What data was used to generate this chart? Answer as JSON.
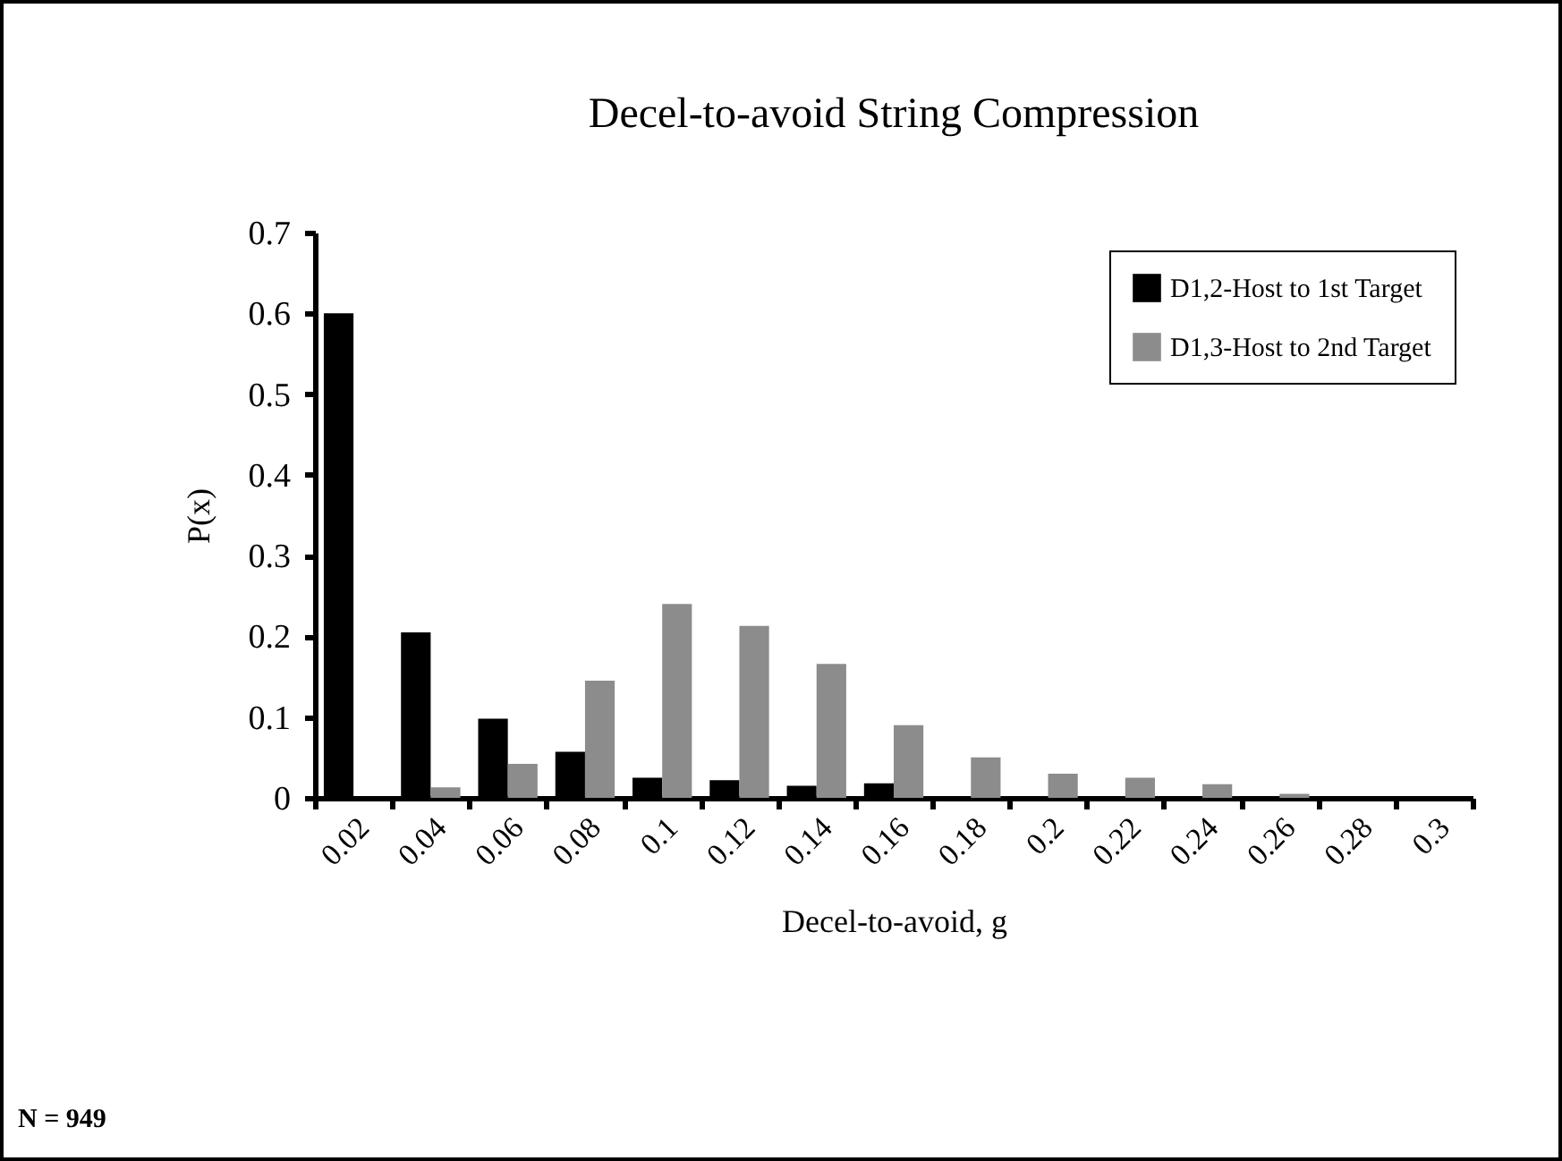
{
  "chart_data": {
    "type": "bar",
    "title": "Decel-to-avoid String Compression",
    "xlabel": "Decel-to-avoid, g",
    "ylabel": "P(x)",
    "categories": [
      "0.02",
      "0.04",
      "0.06",
      "0.08",
      "0.1",
      "0.12",
      "0.14",
      "0.16",
      "0.18",
      "0.2",
      "0.22",
      "0.24",
      "0.26",
      "0.28",
      "0.3"
    ],
    "series": [
      {
        "name": "D1,2-Host to 1st Target",
        "color": "#000000",
        "values": [
          0.6,
          0.205,
          0.098,
          0.057,
          0.025,
          0.022,
          0.015,
          0.018,
          0,
          0,
          0,
          0,
          0,
          0,
          0
        ]
      },
      {
        "name": "D1,3-Host to 2nd Target",
        "color": "#8c8c8c",
        "values": [
          0,
          0.013,
          0.042,
          0.145,
          0.24,
          0.213,
          0.166,
          0.09,
          0.05,
          0.03,
          0.025,
          0.017,
          0.005,
          0,
          0
        ]
      }
    ],
    "ylim": [
      0,
      0.7
    ],
    "yticks": [
      0,
      0.1,
      0.2,
      0.3,
      0.4,
      0.5,
      0.6,
      0.7
    ],
    "legend": "top right",
    "grid": false,
    "annotations": [
      "N = 949"
    ]
  }
}
